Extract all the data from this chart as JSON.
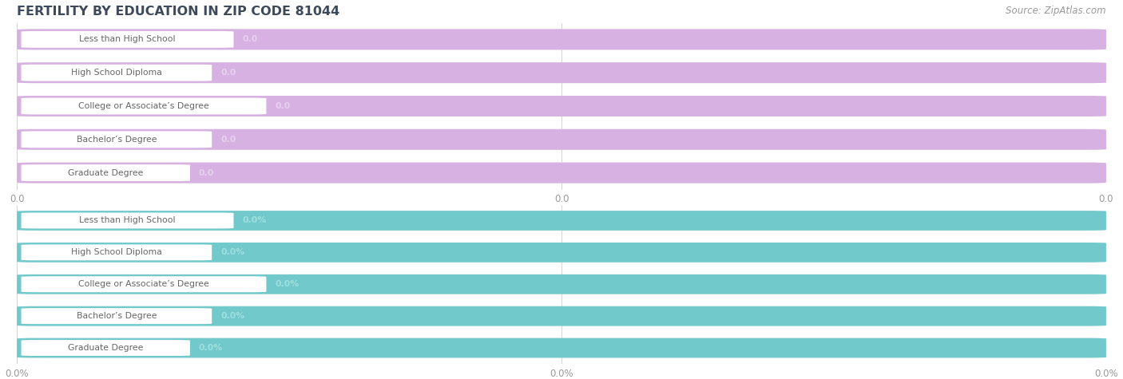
{
  "title": "FERTILITY BY EDUCATION IN ZIP CODE 81044",
  "source": "Source: ZipAtlas.com",
  "categories": [
    "Less than High School",
    "High School Diploma",
    "College or Associate’s Degree",
    "Bachelor’s Degree",
    "Graduate Degree"
  ],
  "values_top": [
    0.0,
    0.0,
    0.0,
    0.0,
    0.0
  ],
  "values_bottom": [
    0.0,
    0.0,
    0.0,
    0.0,
    0.0
  ],
  "bar_color_top": "#d4a8e0",
  "bar_color_bottom": "#5ec4c6",
  "value_label_top": [
    "0.0",
    "0.0",
    "0.0",
    "0.0",
    "0.0"
  ],
  "value_label_bottom": [
    "0.0%",
    "0.0%",
    "0.0%",
    "0.0%",
    "0.0%"
  ],
  "xtick_labels_top": [
    "0.0",
    "0.0",
    "0.0"
  ],
  "xtick_labels_bottom": [
    "0.0%",
    "0.0%",
    "0.0%"
  ],
  "xlim": [
    0.0,
    1.0
  ],
  "background_color": "#ffffff",
  "bar_bg_color": "#e8e8e8",
  "title_color": "#3d4a5c",
  "source_color": "#999999",
  "text_color": "#666666",
  "value_color_top": "#e8d0f0",
  "value_color_bottom": "#a0dfe0"
}
